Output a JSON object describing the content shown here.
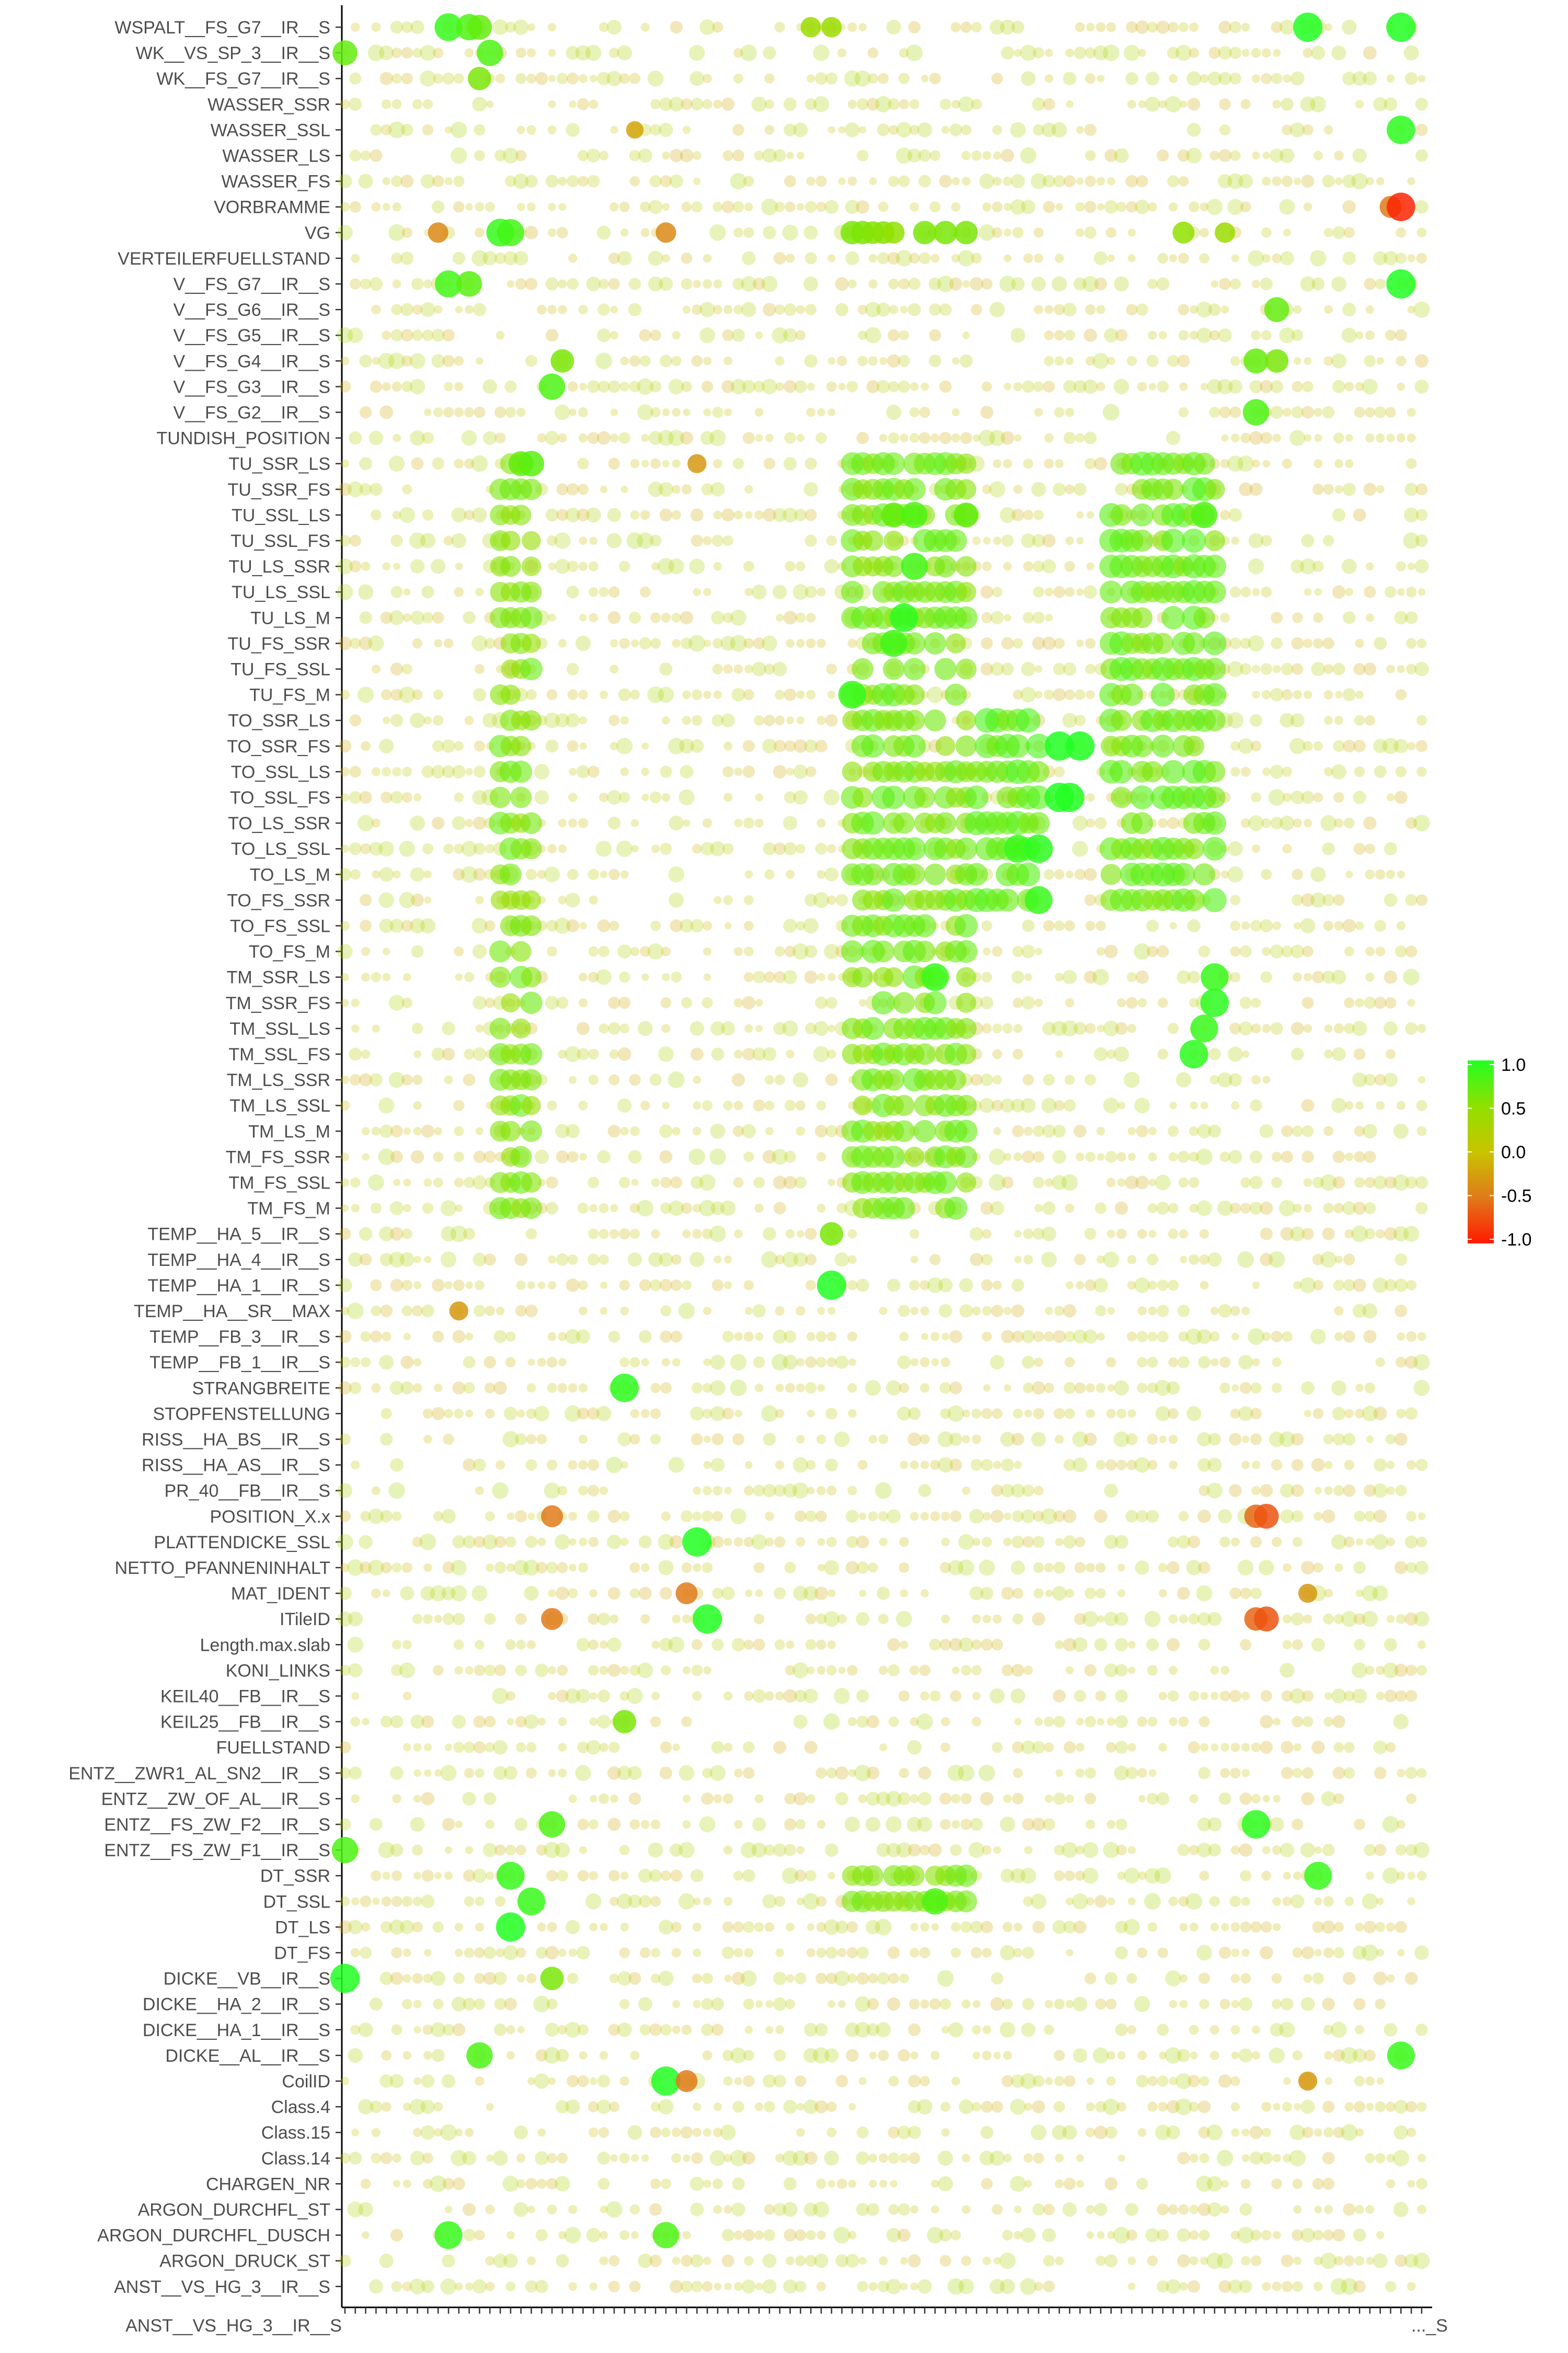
{
  "chart_data": {
    "type": "scatter",
    "title": "",
    "xlabel": "",
    "ylabel": "",
    "grid": false,
    "legend_position": "right",
    "colorscale": {
      "min": -1.0,
      "max": 1.0,
      "colors": [
        "#ff1a00",
        "#e07a1a",
        "#c8c400",
        "#90e000",
        "#22ff22"
      ],
      "ticks": [
        "1.0",
        "0.5",
        "0.0",
        "-0.5",
        "-1.0"
      ]
    },
    "y_categories": [
      "WSPALT__FS_G7__IR__S",
      "WK__VS_SP_3__IR__S",
      "WK__FS_G7__IR__S",
      "WASSER_SSR",
      "WASSER_SSL",
      "WASSER_LS",
      "WASSER_FS",
      "VORBRAMME",
      "VG",
      "VERTEILERFUELLSTAND",
      "V__FS_G7__IR__S",
      "V__FS_G6__IR__S",
      "V__FS_G5__IR__S",
      "V__FS_G4__IR__S",
      "V__FS_G3__IR__S",
      "V__FS_G2__IR__S",
      "TUNDISH_POSITION",
      "TU_SSR_LS",
      "TU_SSR_FS",
      "TU_SSL_LS",
      "TU_SSL_FS",
      "TU_LS_SSR",
      "TU_LS_SSL",
      "TU_LS_M",
      "TU_FS_SSR",
      "TU_FS_SSL",
      "TU_FS_M",
      "TO_SSR_LS",
      "TO_SSR_FS",
      "TO_SSL_LS",
      "TO_SSL_FS",
      "TO_LS_SSR",
      "TO_LS_SSL",
      "TO_LS_M",
      "TO_FS_SSR",
      "TO_FS_SSL",
      "TO_FS_M",
      "TM_SSR_LS",
      "TM_SSR_FS",
      "TM_SSL_LS",
      "TM_SSL_FS",
      "TM_LS_SSR",
      "TM_LS_SSL",
      "TM_LS_M",
      "TM_FS_SSR",
      "TM_FS_SSL",
      "TM_FS_M",
      "TEMP__HA_5__IR__S",
      "TEMP__HA_4__IR__S",
      "TEMP__HA_1__IR__S",
      "TEMP__HA__SR__MAX",
      "TEMP__FB_3__IR__S",
      "TEMP__FB_1__IR__S",
      "STRANGBREITE",
      "STOPFENSTELLUNG",
      "RISS__HA_BS__IR__S",
      "RISS__HA_AS__IR__S",
      "PR_40__FB__IR__S",
      "POSITION_X.x",
      "PLATTENDICKE_SSL",
      "NETTO_PFANNENINHALT",
      "MAT_IDENT",
      "ITileID",
      "Length.max.slab",
      "KONI_LINKS",
      "KEIL40__FB__IR__S",
      "KEIL25__FB__IR__S",
      "FUELLSTAND",
      "ENTZ__ZWR1_AL_SN2__IR__S",
      "ENTZ__ZW_OF_AL__IR__S",
      "ENTZ__FS_ZW_F2__IR__S",
      "ENTZ__FS_ZW_F1__IR__S",
      "DT_SSR",
      "DT_SSL",
      "DT_LS",
      "DT_FS",
      "DICKE__VB__IR__S",
      "DICKE__HA_2__IR__S",
      "DICKE__HA_1__IR__S",
      "DICKE__AL__IR__S",
      "CoilID",
      "Class.4",
      "Class.15",
      "Class.14",
      "CHARGEN_NR",
      "ARGON_DURCHFL_ST",
      "ARGON_DURCHFL_DUSCH",
      "ARGON_DRUCK_ST",
      "ANST__VS_HG_3__IR__S"
    ],
    "x_tick_labels": [
      "ANST__VS_HG_3__IR__S",
      "..._S"
    ],
    "n_x_columns": 105,
    "points": [
      {
        "row": "WSPALT__FS_G7__IR__S",
        "col": 10,
        "r": 0.9
      },
      {
        "row": "WSPALT__FS_G7__IR__S",
        "col": 12,
        "r": 0.8
      },
      {
        "row": "WSPALT__FS_G7__IR__S",
        "col": 13,
        "r": 0.7
      },
      {
        "row": "WSPALT__FS_G7__IR__S",
        "col": 45,
        "r": 0.4
      },
      {
        "row": "WSPALT__FS_G7__IR__S",
        "col": 47,
        "r": 0.4
      },
      {
        "row": "WSPALT__FS_G7__IR__S",
        "col": 93,
        "r": 1.0
      },
      {
        "row": "WSPALT__FS_G7__IR__S",
        "col": 102,
        "r": 1.0
      },
      {
        "row": "WK__VS_SP_3__IR__S",
        "col": 0,
        "r": 0.7
      },
      {
        "row": "WK__VS_SP_3__IR__S",
        "col": 14,
        "r": 0.8
      },
      {
        "row": "WK__FS_G7__IR__S",
        "col": 13,
        "r": 0.6
      },
      {
        "row": "WASSER_SSL",
        "col": 102,
        "r": 0.95
      },
      {
        "row": "WASSER_SSL",
        "col": 28,
        "r": -0.2
      },
      {
        "row": "VORBRAMME",
        "col": 101,
        "r": -0.5
      },
      {
        "row": "VORBRAMME",
        "col": 102,
        "r": -0.95
      },
      {
        "row": "VG",
        "col": 9,
        "r": -0.4
      },
      {
        "row": "VG",
        "col": 15,
        "r": 0.9
      },
      {
        "row": "VG",
        "col": 16,
        "r": 0.85
      },
      {
        "row": "VG",
        "col": 31,
        "r": -0.4
      },
      {
        "row": "VG",
        "col": 49,
        "r": 0.6
      },
      {
        "row": "VG",
        "col": 50,
        "r": 0.6
      },
      {
        "row": "VG",
        "col": 51,
        "r": 0.55
      },
      {
        "row": "VG",
        "col": 52,
        "r": 0.55
      },
      {
        "row": "VG",
        "col": 53,
        "r": 0.5
      },
      {
        "row": "VG",
        "col": 56,
        "r": 0.6
      },
      {
        "row": "VG",
        "col": 58,
        "r": 0.6
      },
      {
        "row": "VG",
        "col": 60,
        "r": 0.6
      },
      {
        "row": "VG",
        "col": 81,
        "r": 0.5
      },
      {
        "row": "VG",
        "col": 85,
        "r": 0.4
      },
      {
        "row": "V__FS_G7__IR__S",
        "col": 10,
        "r": 0.85
      },
      {
        "row": "V__FS_G7__IR__S",
        "col": 12,
        "r": 0.75
      },
      {
        "row": "V__FS_G7__IR__S",
        "col": 102,
        "r": 1.0
      },
      {
        "row": "V__FS_G6__IR__S",
        "col": 90,
        "r": 0.7
      },
      {
        "row": "V__FS_G4__IR__S",
        "col": 21,
        "r": 0.6
      },
      {
        "row": "V__FS_G4__IR__S",
        "col": 88,
        "r": 0.7
      },
      {
        "row": "V__FS_G4__IR__S",
        "col": 90,
        "r": 0.6
      },
      {
        "row": "V__FS_G3__IR__S",
        "col": 20,
        "r": 0.8
      },
      {
        "row": "V__FS_G2__IR__S",
        "col": 88,
        "r": 0.8
      },
      {
        "row": "TU_SSR_LS",
        "col": 17,
        "r": 0.7
      },
      {
        "row": "TU_SSR_LS",
        "col": 18,
        "r": 0.75
      },
      {
        "row": "TU_SSR_LS",
        "col": 34,
        "r": -0.3
      },
      {
        "row": "TU_SSL_LS",
        "col": 53,
        "r": 0.7
      },
      {
        "row": "TU_SSL_LS",
        "col": 55,
        "r": 0.8
      },
      {
        "row": "TU_SSL_LS",
        "col": 60,
        "r": 0.7
      },
      {
        "row": "TU_SSL_LS",
        "col": 83,
        "r": 0.8
      },
      {
        "row": "TU_LS_SSR",
        "col": 55,
        "r": 0.85
      },
      {
        "row": "TU_LS_M",
        "col": 54,
        "r": 0.95
      },
      {
        "row": "TU_FS_SSR",
        "col": 53,
        "r": 0.85
      },
      {
        "row": "TU_FS_M",
        "col": 49,
        "r": 0.9
      },
      {
        "row": "TO_SSR_FS",
        "col": 69,
        "r": 1.0
      },
      {
        "row": "TO_SSR_FS",
        "col": 71,
        "r": 1.0
      },
      {
        "row": "TO_SSL_FS",
        "col": 69,
        "r": 1.0
      },
      {
        "row": "TO_SSL_FS",
        "col": 70,
        "r": 1.0
      },
      {
        "row": "TO_LS_SSL",
        "col": 65,
        "r": 0.9
      },
      {
        "row": "TO_LS_SSL",
        "col": 67,
        "r": 0.95
      },
      {
        "row": "TO_FS_SSR",
        "col": 67,
        "r": 0.9
      },
      {
        "row": "TM_SSR_LS",
        "col": 57,
        "r": 0.9
      },
      {
        "row": "TM_SSR_LS",
        "col": 84,
        "r": 0.9
      },
      {
        "row": "TM_SSR_FS",
        "col": 84,
        "r": 0.95
      },
      {
        "row": "TM_SSL_LS",
        "col": 83,
        "r": 0.9
      },
      {
        "row": "TM_SSL_FS",
        "col": 82,
        "r": 0.95
      },
      {
        "row": "TEMP__HA_5__IR__S",
        "col": 47,
        "r": 0.6
      },
      {
        "row": "TEMP__HA_1__IR__S",
        "col": 47,
        "r": 1.0
      },
      {
        "row": "TEMP__HA__SR__MAX",
        "col": 11,
        "r": -0.3
      },
      {
        "row": "STRANGBREITE",
        "col": 27,
        "r": 0.95
      },
      {
        "row": "POSITION_X.x",
        "col": 20,
        "r": -0.5
      },
      {
        "row": "POSITION_X.x",
        "col": 88,
        "r": -0.6
      },
      {
        "row": "POSITION_X.x",
        "col": 89,
        "r": -0.7
      },
      {
        "row": "PLATTENDICKE_SSL",
        "col": 34,
        "r": 1.0
      },
      {
        "row": "MAT_IDENT",
        "col": 33,
        "r": -0.5
      },
      {
        "row": "MAT_IDENT",
        "col": 93,
        "r": -0.3
      },
      {
        "row": "ITileID",
        "col": 20,
        "r": -0.5
      },
      {
        "row": "ITileID",
        "col": 35,
        "r": 1.0
      },
      {
        "row": "ITileID",
        "col": 88,
        "r": -0.6
      },
      {
        "row": "ITileID",
        "col": 89,
        "r": -0.7
      },
      {
        "row": "KEIL25__FB__IR__S",
        "col": 27,
        "r": 0.6
      },
      {
        "row": "ENTZ__FS_ZW_F2__IR__S",
        "col": 20,
        "r": 0.8
      },
      {
        "row": "ENTZ__FS_ZW_F2__IR__S",
        "col": 88,
        "r": 0.95
      },
      {
        "row": "ENTZ__FS_ZW_F1__IR__S",
        "col": 0,
        "r": 0.8
      },
      {
        "row": "DT_SSR",
        "col": 16,
        "r": 0.9
      },
      {
        "row": "DT_SSR",
        "col": 94,
        "r": 0.9
      },
      {
        "row": "DT_SSL",
        "col": 18,
        "r": 0.9
      },
      {
        "row": "DT_SSL",
        "col": 57,
        "r": 0.8
      },
      {
        "row": "DT_LS",
        "col": 16,
        "r": 1.0
      },
      {
        "row": "DICKE__VB__IR__S",
        "col": 0,
        "r": 1.0
      },
      {
        "row": "DICKE__VB__IR__S",
        "col": 20,
        "r": 0.6
      },
      {
        "row": "DICKE__AL__IR__S",
        "col": 13,
        "r": 0.8
      },
      {
        "row": "DICKE__AL__IR__S",
        "col": 102,
        "r": 0.9
      },
      {
        "row": "CoilID",
        "col": 31,
        "r": 1.0
      },
      {
        "row": "CoilID",
        "col": 33,
        "r": -0.5
      },
      {
        "row": "CoilID",
        "col": 93,
        "r": -0.3
      },
      {
        "row": "ARGON_DURCHFL_DUSCH",
        "col": 10,
        "r": 0.9
      },
      {
        "row": "ARGON_DURCHFL_DUSCH",
        "col": 31,
        "r": 0.8
      }
    ]
  }
}
